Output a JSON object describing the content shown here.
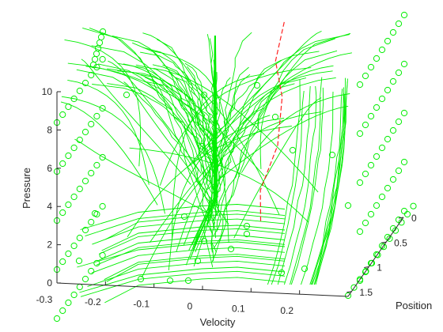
{
  "chart_data": {
    "type": "surface-streamlines-3d",
    "xlabel": "Velocity",
    "ylabel": "Position",
    "zlabel": "Pressure",
    "xticks": [
      "-0.3",
      "-0.2",
      "-0.1",
      "0",
      "0.1",
      "0.2"
    ],
    "yticks": [
      "0",
      "0.5",
      "1",
      "1.5"
    ],
    "zticks": [
      "0",
      "2",
      "4",
      "6",
      "8",
      "10"
    ],
    "xlim": [
      -0.3,
      0.3
    ],
    "ylim": [
      0,
      1.6
    ],
    "zlim": [
      0,
      10
    ],
    "grid": false,
    "colors": {
      "streamline": "#00ee00",
      "marker": "#00ee00",
      "reference": "#ff2020",
      "axes": "#262626"
    },
    "reference_curve": {
      "style": "dashed",
      "points": [
        [
          0.02,
          0.2,
          0.0
        ],
        [
          0.03,
          0.35,
          2.0
        ],
        [
          0.055,
          0.2,
          4.0
        ],
        [
          0.05,
          0.0,
          6.0
        ],
        [
          0.04,
          0.05,
          8.0
        ],
        [
          0.055,
          0.0,
          10.0
        ]
      ]
    }
  }
}
